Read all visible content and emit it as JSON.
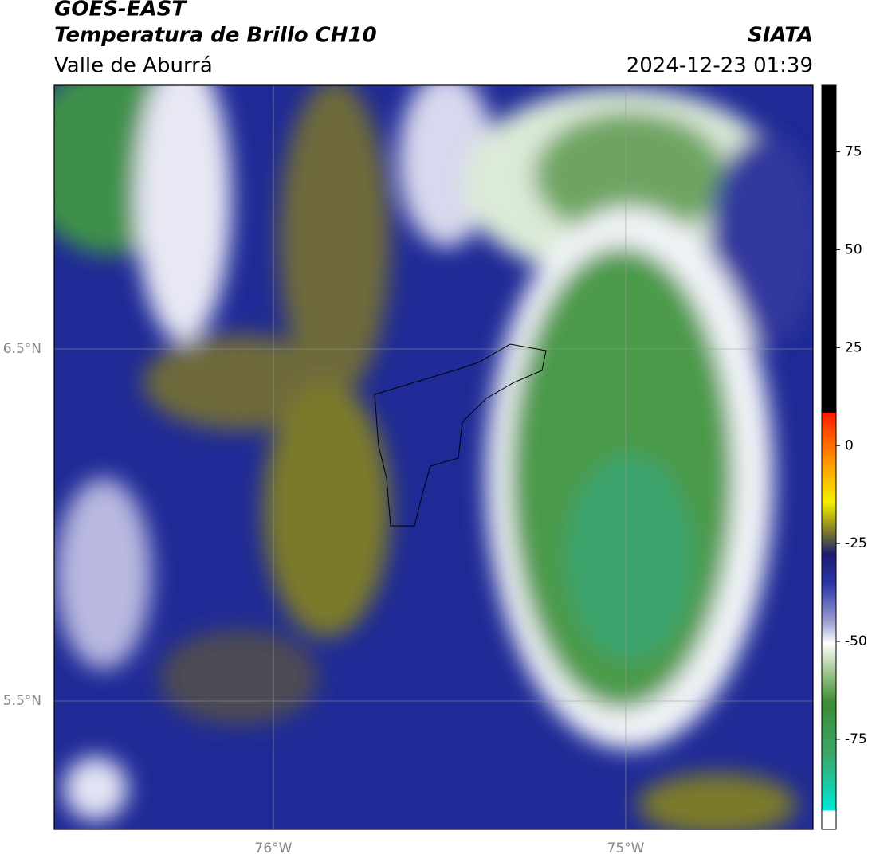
{
  "header": {
    "title": "GOES-EAST",
    "subtitle": "Temperatura de Brillo CH10",
    "region": "Valle de Aburrá",
    "source": "SIATA",
    "datetime": "2024-12-23 01:39"
  },
  "map": {
    "lat_labels": [
      "6.5°N",
      "5.5°N"
    ],
    "lon_labels": [
      "76°W",
      "75°W"
    ]
  },
  "colorbar": {
    "range": [
      -98,
      92
    ],
    "ticks": [
      75,
      50,
      25,
      0,
      -25,
      -50,
      -75
    ]
  }
}
